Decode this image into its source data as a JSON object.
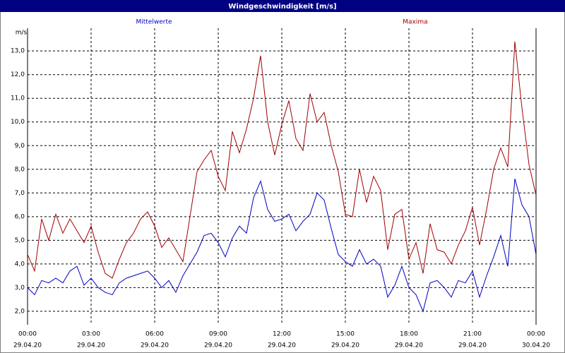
{
  "chart_data": {
    "type": "line",
    "title": "Windgeschwindigkeit [m/s]",
    "y_label": "m/s",
    "x": [
      0,
      20,
      40,
      60,
      80,
      100,
      120,
      140,
      160,
      180,
      200,
      220,
      240,
      260,
      280,
      300,
      320,
      340,
      360,
      380,
      400,
      420,
      440,
      460,
      480,
      500,
      520,
      540,
      560,
      580,
      600,
      620,
      640,
      660,
      680,
      700,
      720,
      740,
      760,
      780,
      800,
      820,
      840,
      860,
      880,
      900,
      920,
      940,
      960,
      980,
      1000,
      1020,
      1040,
      1060,
      1080,
      1100,
      1120,
      1140,
      1160,
      1180,
      1200,
      1220,
      1240,
      1260,
      1280,
      1300,
      1320,
      1340,
      1360,
      1380,
      1400,
      1420,
      1440
    ],
    "series": [
      {
        "name": "Mittelwerte",
        "color": "#0000c0",
        "values": [
          3.0,
          2.7,
          3.3,
          3.2,
          3.4,
          3.2,
          3.7,
          3.9,
          3.1,
          3.4,
          3.0,
          2.8,
          2.7,
          3.2,
          3.4,
          3.5,
          3.6,
          3.7,
          3.4,
          3.0,
          3.3,
          2.8,
          3.5,
          4.0,
          4.5,
          5.2,
          5.3,
          4.9,
          4.3,
          5.1,
          5.6,
          5.3,
          6.8,
          7.5,
          6.3,
          5.8,
          5.9,
          6.1,
          5.4,
          5.8,
          6.1,
          7.0,
          6.7,
          5.5,
          4.4,
          4.1,
          3.9,
          4.6,
          4.0,
          4.2,
          3.9,
          2.6,
          3.1,
          3.9,
          3.0,
          2.7,
          2.0,
          3.2,
          3.3,
          3.0,
          2.6,
          3.3,
          3.2,
          3.7,
          2.6,
          3.5,
          4.3,
          5.2,
          3.9,
          7.6,
          6.5,
          6.0,
          4.4
        ]
      },
      {
        "name": "Maxima",
        "color": "#a00000",
        "values": [
          4.4,
          3.7,
          5.9,
          5.0,
          6.1,
          5.3,
          5.9,
          5.4,
          4.9,
          5.6,
          4.5,
          3.6,
          3.4,
          4.2,
          4.9,
          5.3,
          5.9,
          6.2,
          5.6,
          4.7,
          5.1,
          4.6,
          4.1,
          6.0,
          7.9,
          8.4,
          8.8,
          7.7,
          7.1,
          9.6,
          8.7,
          9.7,
          11.0,
          12.8,
          10.0,
          8.6,
          9.9,
          10.9,
          9.3,
          8.8,
          11.2,
          10.0,
          10.4,
          9.0,
          7.9,
          6.1,
          6.0,
          8.0,
          6.6,
          7.7,
          7.1,
          4.6,
          6.1,
          6.3,
          4.2,
          4.9,
          3.6,
          5.7,
          4.6,
          4.5,
          4.0,
          4.8,
          5.4,
          6.4,
          4.8,
          6.3,
          8.0,
          8.9,
          8.1,
          13.4,
          10.6,
          8.2,
          6.9
        ]
      }
    ],
    "xlim": [
      0,
      1440
    ],
    "xticks": [
      {
        "value": 0,
        "label": "00:00"
      },
      {
        "value": 180,
        "label": "03:00"
      },
      {
        "value": 360,
        "label": "06:00"
      },
      {
        "value": 540,
        "label": "09:00"
      },
      {
        "value": 720,
        "label": "12:00"
      },
      {
        "value": 900,
        "label": "15:00"
      },
      {
        "value": 1080,
        "label": "18:00"
      },
      {
        "value": 1260,
        "label": "21:00"
      },
      {
        "value": 1440,
        "label": "00:00"
      }
    ],
    "xtick_dates": [
      "29.04.20",
      "29.04.20",
      "29.04.20",
      "29.04.20",
      "29.04.20",
      "29.04.20",
      "29.04.20",
      "29.04.20",
      "30.04.20"
    ],
    "ylim": [
      1.43,
      13.96
    ],
    "yticks": [
      {
        "value": 2,
        "label": "2,0"
      },
      {
        "value": 3,
        "label": "3,0"
      },
      {
        "value": 4,
        "label": "4,0"
      },
      {
        "value": 5,
        "label": "5,0"
      },
      {
        "value": 6,
        "label": "6,0"
      },
      {
        "value": 7,
        "label": "7,0"
      },
      {
        "value": 8,
        "label": "8,0"
      },
      {
        "value": 9,
        "label": "9,0"
      },
      {
        "value": 10,
        "label": "10,0"
      },
      {
        "value": 11,
        "label": "11,0"
      },
      {
        "value": 12,
        "label": "12,0"
      },
      {
        "value": 13,
        "label": "13,0"
      }
    ],
    "grid": true
  }
}
